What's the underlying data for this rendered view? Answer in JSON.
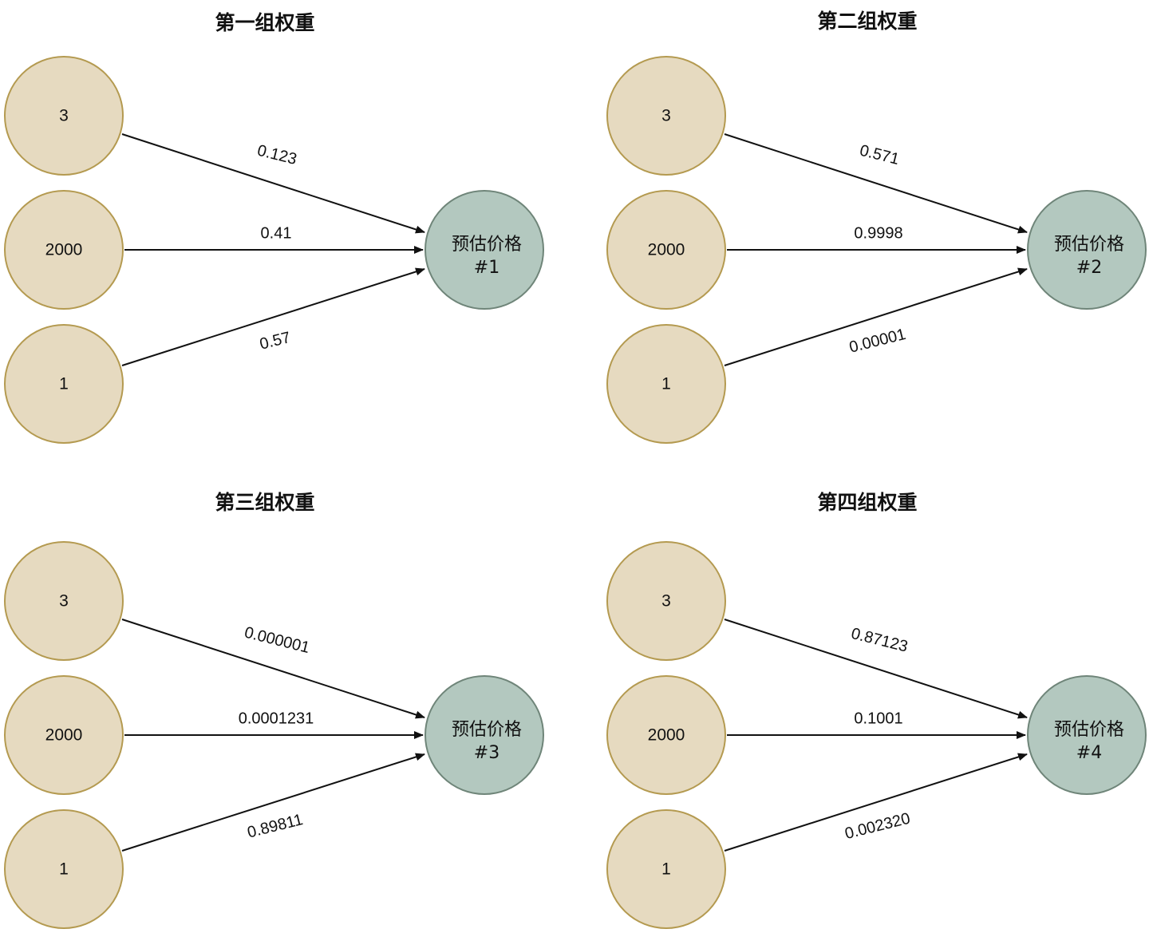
{
  "colors": {
    "input_fill": "#e6dac0",
    "input_stroke": "#b49a50",
    "output_fill": "#b3c8bf",
    "output_stroke": "#6f8579",
    "edge": "#111111"
  },
  "panels": [
    {
      "title": "第一组权重",
      "inputs": [
        "3",
        "2000",
        "1"
      ],
      "output": {
        "line1": "预估价格",
        "line2": "#1"
      },
      "weights": [
        "0.123",
        "0.41",
        "0.57"
      ]
    },
    {
      "title": "第二组权重",
      "inputs": [
        "3",
        "2000",
        "1"
      ],
      "output": {
        "line1": "预估价格",
        "line2": "#2"
      },
      "weights": [
        "0.571",
        "0.9998",
        "0.00001"
      ]
    },
    {
      "title": "第三组权重",
      "inputs": [
        "3",
        "2000",
        "1"
      ],
      "output": {
        "line1": "预估价格",
        "line2": "#3"
      },
      "weights": [
        "0.000001",
        "0.0001231",
        "0.89811"
      ]
    },
    {
      "title": "第四组权重",
      "inputs": [
        "3",
        "2000",
        "1"
      ],
      "output": {
        "line1": "预估价格",
        "line2": "#4"
      },
      "weights": [
        "0.87123",
        "0.1001",
        "0.002320"
      ]
    }
  ]
}
